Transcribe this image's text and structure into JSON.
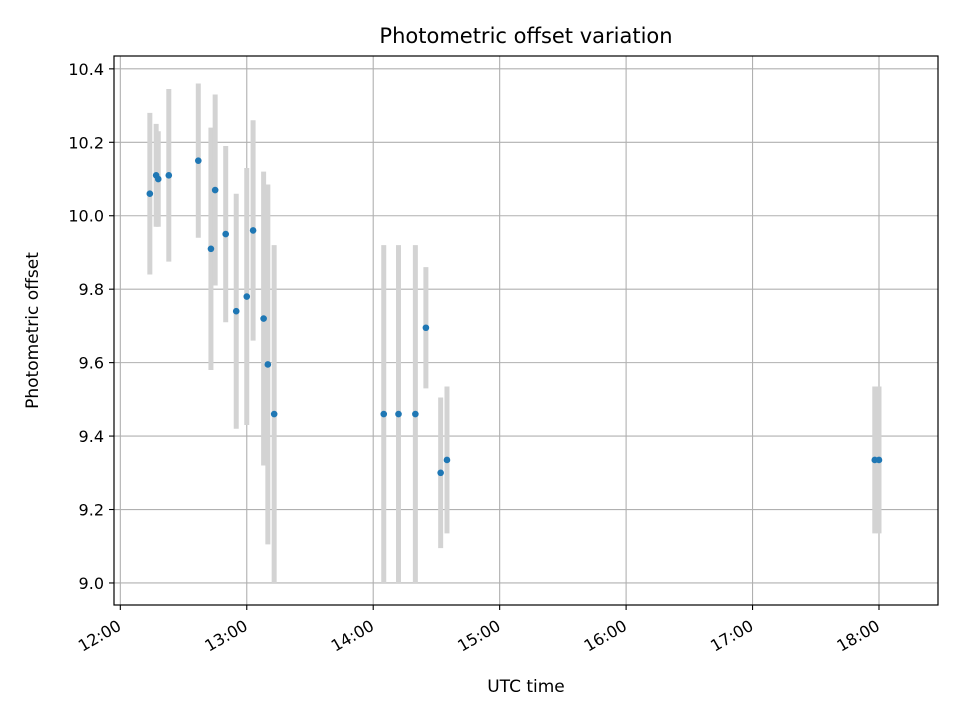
{
  "chart_data": {
    "type": "scatter",
    "title": "Photometric offset variation",
    "xlabel": "UTC time",
    "ylabel": "Photometric offset",
    "xlim": [
      "11:57",
      "18:28"
    ],
    "ylim": [
      8.94,
      10.435
    ],
    "x_ticks": [
      "12:00",
      "13:00",
      "14:00",
      "15:00",
      "16:00",
      "17:00",
      "18:00"
    ],
    "y_ticks": [
      "9.0",
      "9.2",
      "9.4",
      "9.6",
      "9.8",
      "10.0",
      "10.2",
      "10.4"
    ],
    "grid": true,
    "colors": {
      "point": "#1f77b4",
      "errorbar": "#d3d3d3",
      "grid": "#b0b0b0"
    },
    "points": [
      {
        "x": "12:14",
        "y": 10.06,
        "err": 0.22
      },
      {
        "x": "12:17",
        "y": 10.11,
        "err": 0.14
      },
      {
        "x": "12:18",
        "y": 10.1,
        "err": 0.13
      },
      {
        "x": "12:23",
        "y": 10.11,
        "err": 0.235
      },
      {
        "x": "12:37",
        "y": 10.15,
        "err": 0.21
      },
      {
        "x": "12:43",
        "y": 9.91,
        "err": 0.33
      },
      {
        "x": "12:45",
        "y": 10.07,
        "err": 0.26
      },
      {
        "x": "12:50",
        "y": 9.95,
        "err": 0.24
      },
      {
        "x": "12:55",
        "y": 9.74,
        "err": 0.32
      },
      {
        "x": "13:00",
        "y": 9.78,
        "err": 0.35
      },
      {
        "x": "13:03",
        "y": 9.96,
        "err": 0.3
      },
      {
        "x": "13:08",
        "y": 9.72,
        "err": 0.4
      },
      {
        "x": "13:10",
        "y": 9.595,
        "err": 0.49
      },
      {
        "x": "13:13",
        "y": 9.46,
        "err": 0.46
      },
      {
        "x": "14:05",
        "y": 9.46,
        "err": 0.46
      },
      {
        "x": "14:12",
        "y": 9.46,
        "err": 0.46
      },
      {
        "x": "14:20",
        "y": 9.46,
        "err": 0.46
      },
      {
        "x": "14:25",
        "y": 9.695,
        "err": 0.165
      },
      {
        "x": "14:32",
        "y": 9.3,
        "err": 0.205
      },
      {
        "x": "14:35",
        "y": 9.335,
        "err": 0.2
      },
      {
        "x": "17:58",
        "y": 9.335,
        "err": 0.2
      },
      {
        "x": "18:00",
        "y": 9.335,
        "err": 0.2
      }
    ]
  }
}
